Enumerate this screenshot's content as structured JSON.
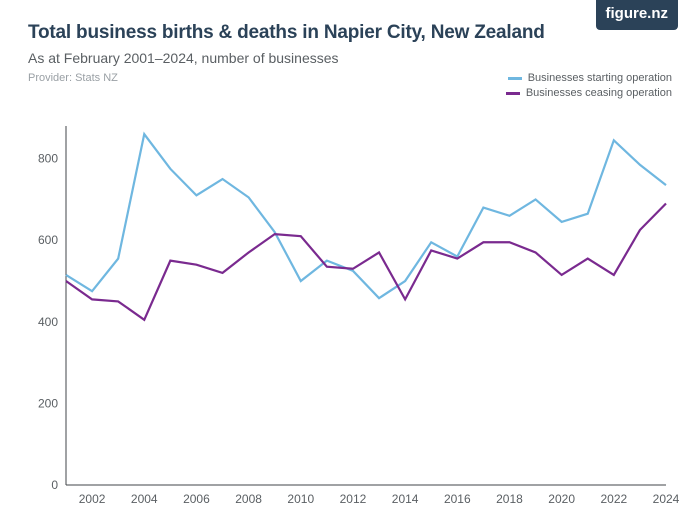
{
  "logo": {
    "text": "figure.nz",
    "bg": "#2b4258"
  },
  "title": {
    "text": "Total business births & deaths in Napier City, New Zealand",
    "color": "#2b4258"
  },
  "subtitle": {
    "text": "As at February 2001–2024, number of businesses",
    "color": "#5a5f63"
  },
  "provider": {
    "text": "Provider: Stats NZ",
    "color": "#9aa0a5"
  },
  "legend": {
    "color": "#5a5f63",
    "items": [
      {
        "label": "Businesses starting operation",
        "color": "#6fb7e0"
      },
      {
        "label": "Businesses ceasing operation",
        "color": "#7a2a8f"
      }
    ]
  },
  "chart": {
    "type": "line",
    "background_color": "#ffffff",
    "axis_color": "#414448",
    "axis_label_color": "#5a5f63",
    "axis_label_fontsize": 12,
    "line_width": 2.2,
    "x": {
      "years": [
        2001,
        2002,
        2003,
        2004,
        2005,
        2006,
        2007,
        2008,
        2009,
        2010,
        2011,
        2012,
        2013,
        2014,
        2015,
        2016,
        2017,
        2018,
        2019,
        2020,
        2021,
        2022,
        2023,
        2024
      ],
      "ticks": [
        2002,
        2004,
        2006,
        2008,
        2010,
        2012,
        2014,
        2016,
        2018,
        2020,
        2022,
        2024
      ]
    },
    "y": {
      "min": 0,
      "max": 880,
      "ticks": [
        0,
        200,
        400,
        600,
        800
      ]
    },
    "series": [
      {
        "name": "Businesses starting operation",
        "color": "#6fb7e0",
        "values": [
          515,
          475,
          555,
          860,
          775,
          710,
          750,
          705,
          620,
          500,
          550,
          525,
          458,
          500,
          595,
          560,
          680,
          660,
          700,
          645,
          665,
          845,
          785,
          735
        ]
      },
      {
        "name": "Businesses ceasing operation",
        "color": "#7a2a8f",
        "values": [
          500,
          455,
          450,
          405,
          550,
          540,
          520,
          570,
          615,
          610,
          535,
          530,
          570,
          455,
          575,
          555,
          595,
          595,
          570,
          515,
          555,
          515,
          625,
          690
        ]
      }
    ]
  }
}
